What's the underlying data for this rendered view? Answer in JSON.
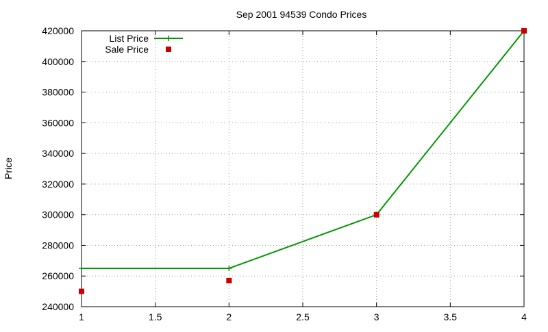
{
  "chart_data": {
    "type": "line",
    "title": "Sep 2001 94539 Condo Prices",
    "xlabel": "",
    "ylabel": "Price",
    "xlim": [
      1,
      4
    ],
    "ylim": [
      240000,
      420000
    ],
    "x_ticks": [
      "1",
      "1.5",
      "2",
      "2.5",
      "3",
      "3.5",
      "4"
    ],
    "y_ticks": [
      "240000",
      "260000",
      "280000",
      "300000",
      "320000",
      "340000",
      "360000",
      "380000",
      "400000",
      "420000"
    ],
    "grid": true,
    "legend_position": "top-left",
    "series": [
      {
        "name": "List Price",
        "style": "linespoints",
        "marker": "plus",
        "color": "#009900",
        "x": [
          1,
          2,
          3,
          4
        ],
        "y": [
          265000,
          265000,
          300000,
          420000
        ]
      },
      {
        "name": "Sale Price",
        "style": "points",
        "marker": "square",
        "color": "#cc0000",
        "x": [
          1,
          2,
          3,
          4
        ],
        "y": [
          250000,
          257000,
          300000,
          420000
        ]
      }
    ]
  }
}
